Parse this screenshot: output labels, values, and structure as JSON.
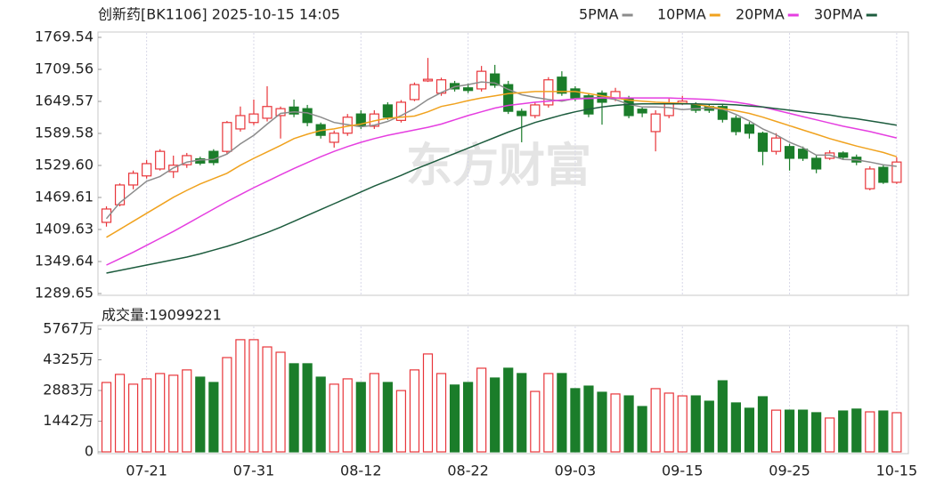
{
  "watermark": "东方财富",
  "chart_data": [
    {
      "type": "candlestick",
      "title": "创新药[BK1106] 2025-10-15 14:05",
      "up_color": "#e8353a",
      "down_color": "#1b7d2a",
      "ylim": [
        1289.65,
        1769.54
      ],
      "yticks": [
        1769.54,
        1709.56,
        1649.57,
        1589.58,
        {
          "value": 1529.6,
          "label": "1529.60"
        },
        1469.61,
        1409.63,
        1349.64,
        1289.65
      ],
      "open": [
        1423,
        1456,
        1493,
        1510,
        1523,
        1518,
        1531,
        1542,
        1556,
        1556,
        1598,
        1610,
        1618,
        1623,
        1639,
        1636,
        1606,
        1573,
        1590,
        1626,
        1603,
        1643,
        1614,
        1653,
        1688,
        1665,
        1683,
        1675,
        1673,
        1701,
        1681,
        1631,
        1623,
        1643,
        1695,
        1673,
        1660,
        1665,
        1656,
        1656,
        1635,
        1593,
        1623,
        1646,
        1643,
        1640,
        1640,
        1618,
        1606,
        1590,
        1556,
        1565,
        1560,
        1543,
        1543,
        1553,
        1545,
        1486,
        1526,
        1498
      ],
      "high": [
        1453,
        1496,
        1520,
        1540,
        1560,
        1548,
        1553,
        1546,
        1560,
        1613,
        1640,
        1653,
        1678,
        1640,
        1653,
        1643,
        1610,
        1595,
        1626,
        1633,
        1633,
        1648,
        1652,
        1685,
        1731,
        1694,
        1688,
        1683,
        1716,
        1718,
        1688,
        1636,
        1648,
        1695,
        1706,
        1678,
        1665,
        1670,
        1675,
        1660,
        1640,
        1633,
        1655,
        1660,
        1648,
        1645,
        1645,
        1623,
        1611,
        1593,
        1590,
        1570,
        1565,
        1548,
        1558,
        1556,
        1550,
        1528,
        1530,
        1545
      ],
      "low": [
        1415,
        1453,
        1485,
        1505,
        1520,
        1506,
        1525,
        1530,
        1530,
        1550,
        1593,
        1605,
        1612,
        1580,
        1620,
        1603,
        1580,
        1563,
        1585,
        1598,
        1598,
        1615,
        1610,
        1650,
        1686,
        1660,
        1668,
        1665,
        1668,
        1675,
        1626,
        1573,
        1618,
        1638,
        1660,
        1650,
        1620,
        1606,
        1650,
        1618,
        1620,
        1556,
        1618,
        1643,
        1628,
        1628,
        1610,
        1586,
        1580,
        1530,
        1550,
        1520,
        1538,
        1515,
        1540,
        1540,
        1530,
        1483,
        1495,
        1495
      ],
      "close": [
        1448,
        1493,
        1515,
        1533,
        1556,
        1530,
        1548,
        1534,
        1535,
        1610,
        1623,
        1626,
        1640,
        1636,
        1626,
        1610,
        1586,
        1590,
        1620,
        1603,
        1626,
        1620,
        1648,
        1681,
        1691,
        1690,
        1673,
        1670,
        1706,
        1680,
        1631,
        1623,
        1643,
        1690,
        1665,
        1656,
        1626,
        1648,
        1668,
        1623,
        1628,
        1626,
        1645,
        1650,
        1633,
        1633,
        1616,
        1593,
        1590,
        1556,
        1581,
        1543,
        1543,
        1523,
        1553,
        1545,
        1536,
        1523,
        1498,
        1536
      ],
      "series": [
        {
          "name": "5PMA",
          "color": "#8c8c8c",
          "values": [
            1430,
            1460,
            1480,
            1500,
            1509,
            1525,
            1536,
            1540,
            1541,
            1551,
            1570,
            1586,
            1607,
            1627,
            1630,
            1628,
            1620,
            1610,
            1606,
            1602,
            1605,
            1612,
            1623,
            1636,
            1653,
            1666,
            1677,
            1681,
            1686,
            1684,
            1672,
            1662,
            1657,
            1653,
            1650,
            1655,
            1656,
            1657,
            1653,
            1644,
            1639,
            1639,
            1638,
            1634,
            1636,
            1637,
            1635,
            1625,
            1613,
            1598,
            1587,
            1573,
            1563,
            1549,
            1549,
            1541,
            1540,
            1536,
            1531,
            1528
          ]
        },
        {
          "name": "10PMA",
          "color": "#f0a21e",
          "values": [
            1395,
            1410,
            1425,
            1440,
            1455,
            1470,
            1483,
            1495,
            1505,
            1515,
            1530,
            1543,
            1555,
            1567,
            1580,
            1588,
            1595,
            1598,
            1603,
            1607,
            1613,
            1618,
            1620,
            1622,
            1630,
            1640,
            1645,
            1651,
            1656,
            1660,
            1664,
            1666,
            1668,
            1668,
            1668,
            1668,
            1664,
            1660,
            1656,
            1652,
            1650,
            1648,
            1647,
            1646,
            1644,
            1640,
            1636,
            1632,
            1627,
            1620,
            1612,
            1604,
            1596,
            1588,
            1580,
            1573,
            1566,
            1560,
            1554,
            1546
          ]
        },
        {
          "name": "20PMA",
          "color": "#e53ee0",
          "values": [
            1343,
            1355,
            1367,
            1380,
            1393,
            1406,
            1420,
            1434,
            1448,
            1462,
            1475,
            1488,
            1500,
            1512,
            1524,
            1535,
            1546,
            1556,
            1565,
            1573,
            1580,
            1586,
            1591,
            1596,
            1601,
            1607,
            1615,
            1623,
            1630,
            1637,
            1642,
            1645,
            1648,
            1650,
            1652,
            1654,
            1655,
            1656,
            1656,
            1656,
            1656,
            1656,
            1656,
            1655,
            1654,
            1653,
            1651,
            1648,
            1644,
            1639,
            1633,
            1627,
            1621,
            1615,
            1609,
            1603,
            1598,
            1593,
            1587,
            1581
          ]
        },
        {
          "name": "30PMA",
          "color": "#1d5c3e",
          "values": [
            1328,
            1333,
            1338,
            1343,
            1348,
            1353,
            1358,
            1364,
            1371,
            1378,
            1386,
            1395,
            1404,
            1414,
            1425,
            1436,
            1447,
            1458,
            1469,
            1480,
            1491,
            1501,
            1511,
            1522,
            1532,
            1542,
            1552,
            1562,
            1572,
            1582,
            1592,
            1601,
            1610,
            1617,
            1624,
            1630,
            1635,
            1639,
            1642,
            1644,
            1645,
            1645,
            1645,
            1645,
            1645,
            1644,
            1644,
            1643,
            1641,
            1639,
            1636,
            1633,
            1630,
            1627,
            1624,
            1620,
            1617,
            1613,
            1609,
            1605
          ]
        }
      ]
    },
    {
      "type": "bar",
      "title": "成交量:19099221",
      "ylim": [
        0,
        5767
      ],
      "yticks": [
        {
          "value": 5767,
          "label": "5767万"
        },
        {
          "value": 4325,
          "label": "4325万"
        },
        {
          "value": 2883,
          "label": "2883万"
        },
        {
          "value": 1442,
          "label": "1442万"
        },
        0
      ],
      "categories": [
        null,
        null,
        null,
        "07-21",
        null,
        null,
        null,
        null,
        null,
        null,
        null,
        "07-31",
        null,
        null,
        null,
        null,
        null,
        null,
        null,
        "08-12",
        null,
        null,
        null,
        null,
        null,
        null,
        null,
        "08-22",
        null,
        null,
        null,
        null,
        null,
        null,
        null,
        "09-03",
        null,
        null,
        null,
        null,
        null,
        null,
        null,
        "09-15",
        null,
        null,
        null,
        null,
        null,
        null,
        null,
        "09-25",
        null,
        null,
        null,
        null,
        null,
        null,
        null,
        "10-15"
      ],
      "values": [
        3260,
        3640,
        3180,
        3430,
        3680,
        3600,
        3850,
        3510,
        3260,
        4430,
        5270,
        5270,
        4930,
        4680,
        4140,
        4140,
        3510,
        3180,
        3430,
        3260,
        3680,
        3260,
        2880,
        3850,
        4600,
        3680,
        3140,
        3260,
        3930,
        3470,
        3930,
        3680,
        2840,
        3680,
        3680,
        2970,
        3090,
        2800,
        2720,
        2630,
        2130,
        2970,
        2760,
        2630,
        2630,
        2380,
        3340,
        2300,
        2050,
        2590,
        1960,
        1960,
        1960,
        1840,
        1590,
        1920,
        2010,
        1880,
        1920,
        1840
      ]
    }
  ]
}
